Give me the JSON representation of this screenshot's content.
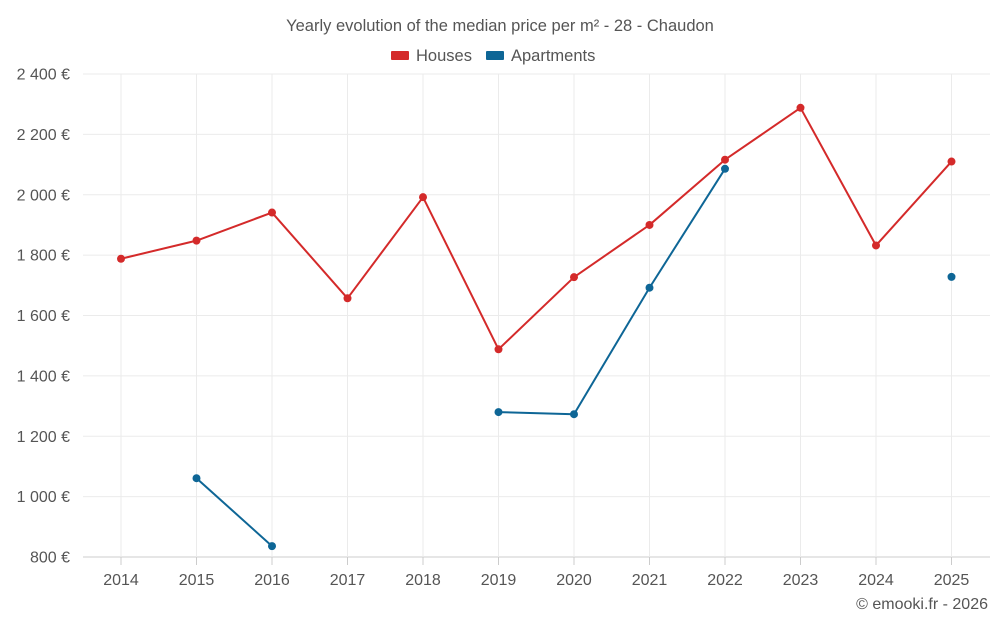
{
  "chart_data": {
    "type": "line",
    "title": "Yearly evolution of the median price per m² - 28 - Chaudon",
    "xlabel": "",
    "ylabel": "",
    "categories": [
      "2014",
      "2015",
      "2016",
      "2017",
      "2018",
      "2019",
      "2020",
      "2021",
      "2022",
      "2023",
      "2024",
      "2025"
    ],
    "ylim": [
      800,
      2400
    ],
    "yticks": [
      800,
      1000,
      1200,
      1400,
      1600,
      1800,
      2000,
      2200,
      2400
    ],
    "ytick_labels": [
      "800 €",
      "1 000 €",
      "1 200 €",
      "1 400 €",
      "1 600 €",
      "1 800 €",
      "2 000 €",
      "2 200 €",
      "2 400 €"
    ],
    "grid": true,
    "legend_position": "top-center",
    "series": [
      {
        "name": "Houses",
        "color": "#d42a2a",
        "values": [
          1788,
          1848,
          1941,
          1657,
          1992,
          1488,
          1727,
          1900,
          2116,
          2288,
          1832,
          2110
        ]
      },
      {
        "name": "Apartments",
        "color": "#0e6696",
        "values": [
          null,
          1061,
          836,
          null,
          null,
          1280,
          1273,
          1692,
          2086,
          null,
          null,
          1728
        ]
      }
    ]
  },
  "credit": "© emooki.fr - 2026"
}
